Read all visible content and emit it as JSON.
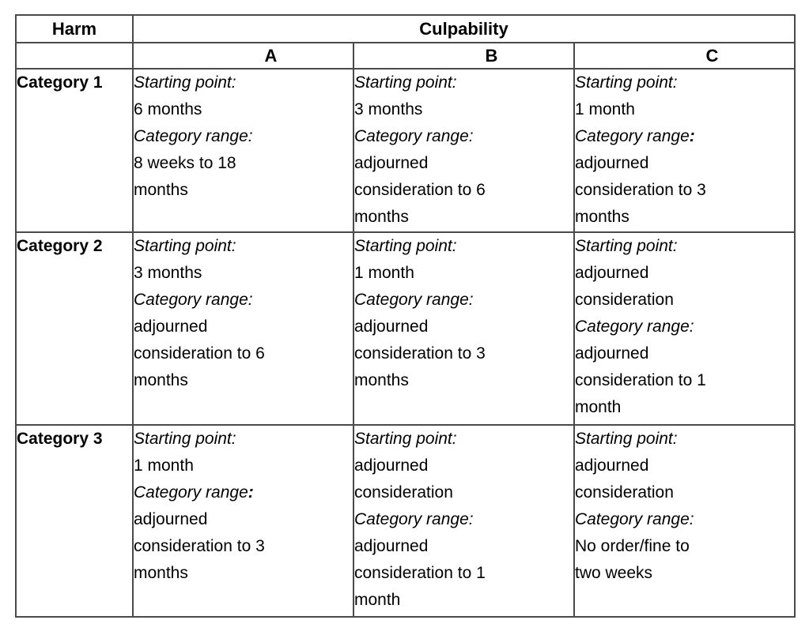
{
  "document": {
    "background_color": "#ffffff",
    "text_color": "#000000"
  },
  "table": {
    "border_color": "#4a4a4a",
    "header": {
      "harm_label": "Harm",
      "culpability_label": "Culpability",
      "columns": [
        "A",
        "B",
        "C"
      ]
    },
    "rows": [
      {
        "label": "Category 1",
        "cells": [
          {
            "lines": [
              [
                {
                  "t": "Starting point:",
                  "i": true
                }
              ],
              [
                {
                  "t": "6 months"
                }
              ],
              [
                {
                  "t": "Category range:",
                  "i": true
                }
              ],
              [
                {
                  "t": "8 weeks to 18"
                }
              ],
              [
                {
                  "t": "months"
                }
              ]
            ]
          },
          {
            "lines": [
              [
                {
                  "t": "Starting point:",
                  "i": true
                }
              ],
              [
                {
                  "t": "3 months"
                }
              ],
              [
                {
                  "t": "Category range:",
                  "i": true
                }
              ],
              [
                {
                  "t": "adjourned"
                }
              ],
              [
                {
                  "t": "consideration to 6"
                }
              ],
              [
                {
                  "t": "months"
                }
              ]
            ]
          },
          {
            "lines": [
              [
                {
                  "t": "Starting point:",
                  "i": true
                }
              ],
              [
                {
                  "t": "1 month"
                }
              ],
              [
                {
                  "t": "Category range",
                  "i": true
                },
                {
                  "t": ":",
                  "i": true,
                  "b": true
                }
              ],
              [
                {
                  "t": "adjourned"
                }
              ],
              [
                {
                  "t": "consideration to 3"
                }
              ],
              [
                {
                  "t": "months"
                }
              ]
            ]
          }
        ]
      },
      {
        "label": "Category 2",
        "cells": [
          {
            "lines": [
              [
                {
                  "t": "Starting point:",
                  "i": true
                }
              ],
              [
                {
                  "t": "3 months"
                }
              ],
              [
                {
                  "t": "Category range:",
                  "i": true
                }
              ],
              [
                {
                  "t": "adjourned"
                }
              ],
              [
                {
                  "t": "consideration to 6"
                }
              ],
              [
                {
                  "t": "months"
                }
              ]
            ]
          },
          {
            "lines": [
              [
                {
                  "t": "Starting point:",
                  "i": true
                }
              ],
              [
                {
                  "t": "1 month"
                }
              ],
              [
                {
                  "t": "Category range:",
                  "i": true
                }
              ],
              [
                {
                  "t": "adjourned"
                }
              ],
              [
                {
                  "t": "consideration to 3"
                }
              ],
              [
                {
                  "t": "months"
                }
              ]
            ]
          },
          {
            "lines": [
              [
                {
                  "t": "Starting point:",
                  "i": true
                }
              ],
              [
                {
                  "t": "adjourned"
                }
              ],
              [
                {
                  "t": "consideration"
                }
              ],
              [
                {
                  "t": "Category range:",
                  "i": true
                }
              ],
              [
                {
                  "t": "adjourned"
                }
              ],
              [
                {
                  "t": "consideration to 1"
                }
              ],
              [
                {
                  "t": "month"
                }
              ]
            ]
          }
        ]
      },
      {
        "label": "Category 3",
        "cells": [
          {
            "lines": [
              [
                {
                  "t": "Starting point:",
                  "i": true
                }
              ],
              [
                {
                  "t": "1 month"
                }
              ],
              [
                {
                  "t": "Category range",
                  "i": true
                },
                {
                  "t": ":",
                  "i": true,
                  "b": true
                }
              ],
              [
                {
                  "t": "adjourned"
                }
              ],
              [
                {
                  "t": "consideration to 3"
                }
              ],
              [
                {
                  "t": "months"
                }
              ]
            ]
          },
          {
            "lines": [
              [
                {
                  "t": "Starting point:",
                  "i": true
                }
              ],
              [
                {
                  "t": "adjourned"
                }
              ],
              [
                {
                  "t": "consideration"
                }
              ],
              [
                {
                  "t": "Category range:",
                  "i": true
                }
              ],
              [
                {
                  "t": "adjourned"
                }
              ],
              [
                {
                  "t": "consideration to 1"
                }
              ],
              [
                {
                  "t": "month"
                }
              ]
            ]
          },
          {
            "lines": [
              [
                {
                  "t": "Starting point:",
                  "i": true
                }
              ],
              [
                {
                  "t": "adjourned"
                }
              ],
              [
                {
                  "t": "consideration"
                }
              ],
              [
                {
                  "t": "Category range:",
                  "i": true
                }
              ],
              [
                {
                  "t": "No order/fine to"
                }
              ],
              [
                {
                  "t": "two weeks"
                }
              ]
            ]
          }
        ]
      }
    ]
  }
}
